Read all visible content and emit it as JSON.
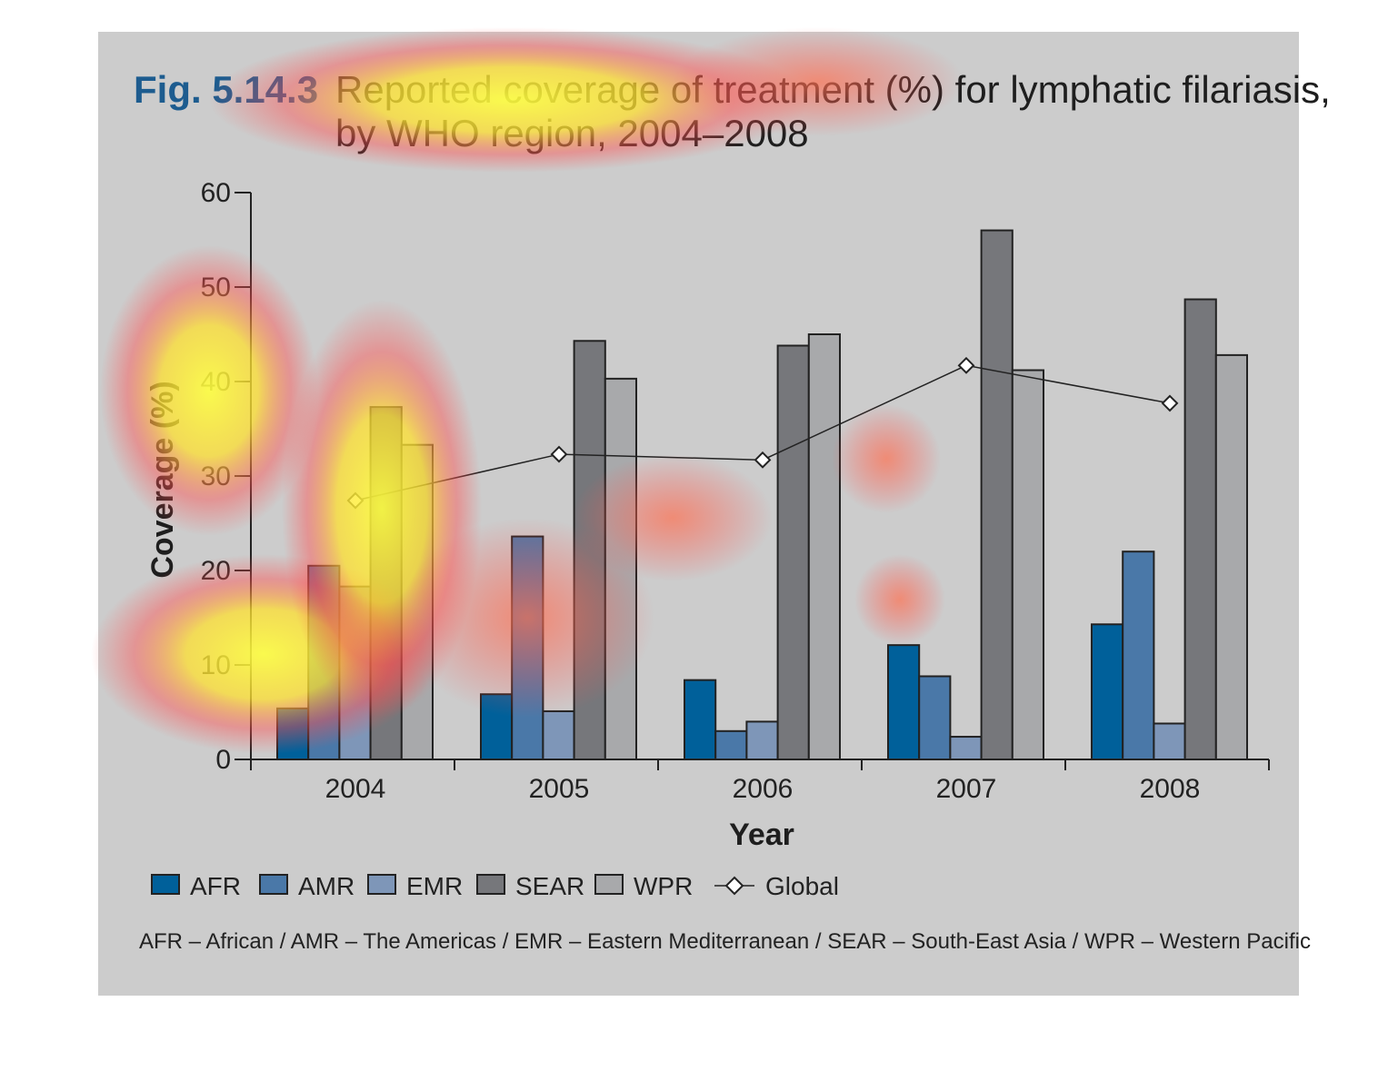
{
  "chart_data": {
    "type": "bar",
    "figure_number": "Fig. 5.14.3",
    "title_line1": "Reported coverage of treatment (%) for lymphatic filariasis,",
    "title_line2": "by WHO region, 2004–2008",
    "xlabel": "Year",
    "ylabel": "Coverage (%)",
    "ylim": [
      0,
      60
    ],
    "yticks": [
      "0",
      "10",
      "20",
      "30",
      "40",
      "50",
      "60"
    ],
    "categories": [
      "2004",
      "2005",
      "2006",
      "2007",
      "2008"
    ],
    "series": [
      {
        "name": "AFR",
        "color": "#00609a",
        "values": [
          5.4,
          6.9,
          8.4,
          12.1,
          14.3
        ]
      },
      {
        "name": "AMR",
        "color": "#4a78a8",
        "values": [
          20.5,
          23.6,
          3.0,
          8.8,
          22.0
        ]
      },
      {
        "name": "EMR",
        "color": "#7e96b8",
        "values": [
          18.3,
          5.1,
          4.0,
          2.4,
          3.8
        ]
      },
      {
        "name": "SEAR",
        "color": "#76777b",
        "values": [
          37.3,
          44.3,
          43.8,
          56.0,
          48.7
        ]
      },
      {
        "name": "WPR",
        "color": "#a8a9ab",
        "values": [
          33.3,
          40.3,
          45.0,
          41.2,
          42.8
        ]
      }
    ],
    "line_series": {
      "name": "Global",
      "type": "line",
      "marker": "diamond",
      "values": [
        27.4,
        32.3,
        31.7,
        41.7,
        37.7
      ]
    },
    "legend_position": "bottom-left",
    "footnote": "AFR – African / AMR – The Americas / EMR – Eastern Mediterranean / SEAR – South-East Asia / WPR – Western Pacific"
  }
}
